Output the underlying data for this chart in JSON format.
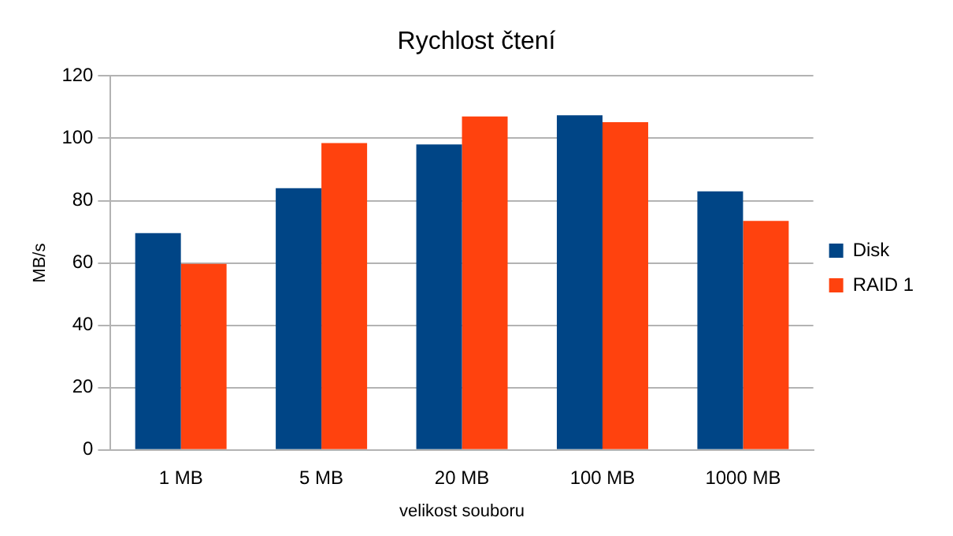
{
  "chart_data": {
    "type": "bar",
    "title": "Rychlost čtení",
    "xlabel": "velikost souboru",
    "ylabel": "MB/s",
    "categories": [
      "1 MB",
      "5 MB",
      "20 MB",
      "100 MB",
      "1000 MB"
    ],
    "series": [
      {
        "name": "Disk",
        "color": "#004586",
        "values": [
          69.6,
          84,
          98,
          107.4,
          83
        ]
      },
      {
        "name": "RAID 1",
        "color": "#ff420e",
        "values": [
          59.7,
          98.5,
          107,
          105.2,
          73.5
        ]
      }
    ],
    "ylim": [
      0,
      120
    ],
    "yticks": [
      0,
      20,
      40,
      60,
      80,
      100,
      120
    ],
    "grid": "y",
    "legend": "right"
  }
}
